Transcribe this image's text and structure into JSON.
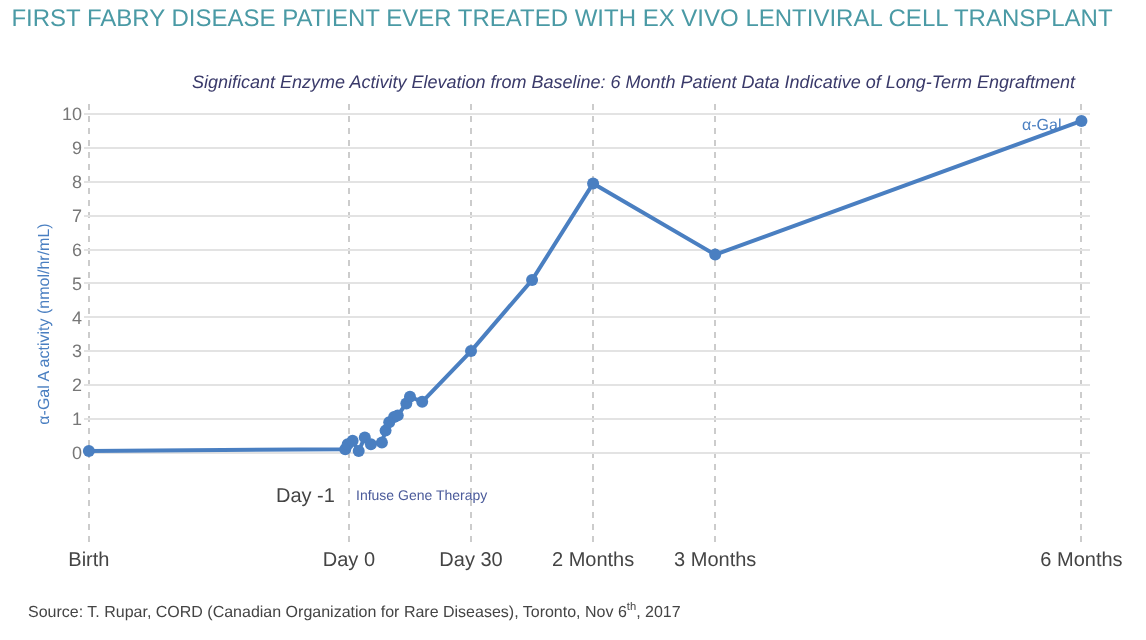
{
  "chart_data": {
    "type": "line",
    "title": "FIRST FABRY DISEASE PATIENT EVER TREATED WITH EX VIVO LENTIVIRAL CELL TRANSPLANT",
    "subtitle": "Significant Enzyme Activity Elevation from Baseline: 6 Month Patient Data Indicative of Long-Term Engraftment",
    "ylabel": "α-Gal A activity (nmol/hr/mL)",
    "series": [
      {
        "name": "α-Gal",
        "color": "#4a7fc1",
        "x": [
          -2.13,
          -0.03,
          -0.01,
          0.03,
          0.08,
          0.13,
          0.18,
          0.27,
          0.3,
          0.33,
          0.37,
          0.4,
          0.47,
          0.5,
          0.6,
          1,
          1.5,
          2,
          3,
          6
        ],
        "values": [
          0.05,
          0.1,
          0.25,
          0.35,
          0.05,
          0.45,
          0.25,
          0.3,
          0.65,
          0.9,
          1.05,
          1.1,
          1.45,
          1.65,
          1.5,
          3.0,
          5.1,
          7.95,
          5.85,
          9.8
        ]
      }
    ],
    "xlim": [
      -2.17,
      6.07
    ],
    "xticks": [
      {
        "value": -2.13,
        "label": "Birth"
      },
      {
        "value": 0,
        "label": "Day 0"
      },
      {
        "value": 1,
        "label": "Day 30"
      },
      {
        "value": 2,
        "label": "2 Months"
      },
      {
        "value": 3,
        "label": "3 Months"
      },
      {
        "value": 6,
        "label": "6 Months"
      }
    ],
    "ylim": [
      -2.7,
      10.3
    ],
    "yticks": [
      0,
      1,
      2,
      3,
      4,
      5,
      6,
      7,
      8,
      9,
      10
    ],
    "grid": true,
    "marker": "circle",
    "line_style": "solid",
    "legend": false,
    "annotations": [
      "Day -1",
      "Infuse Gene Therapy",
      "Source: T. Rupar, CORD (Canadian Organization for Rare Diseases), Toronto, Nov 6$^{th}$, 2017"
    ]
  }
}
